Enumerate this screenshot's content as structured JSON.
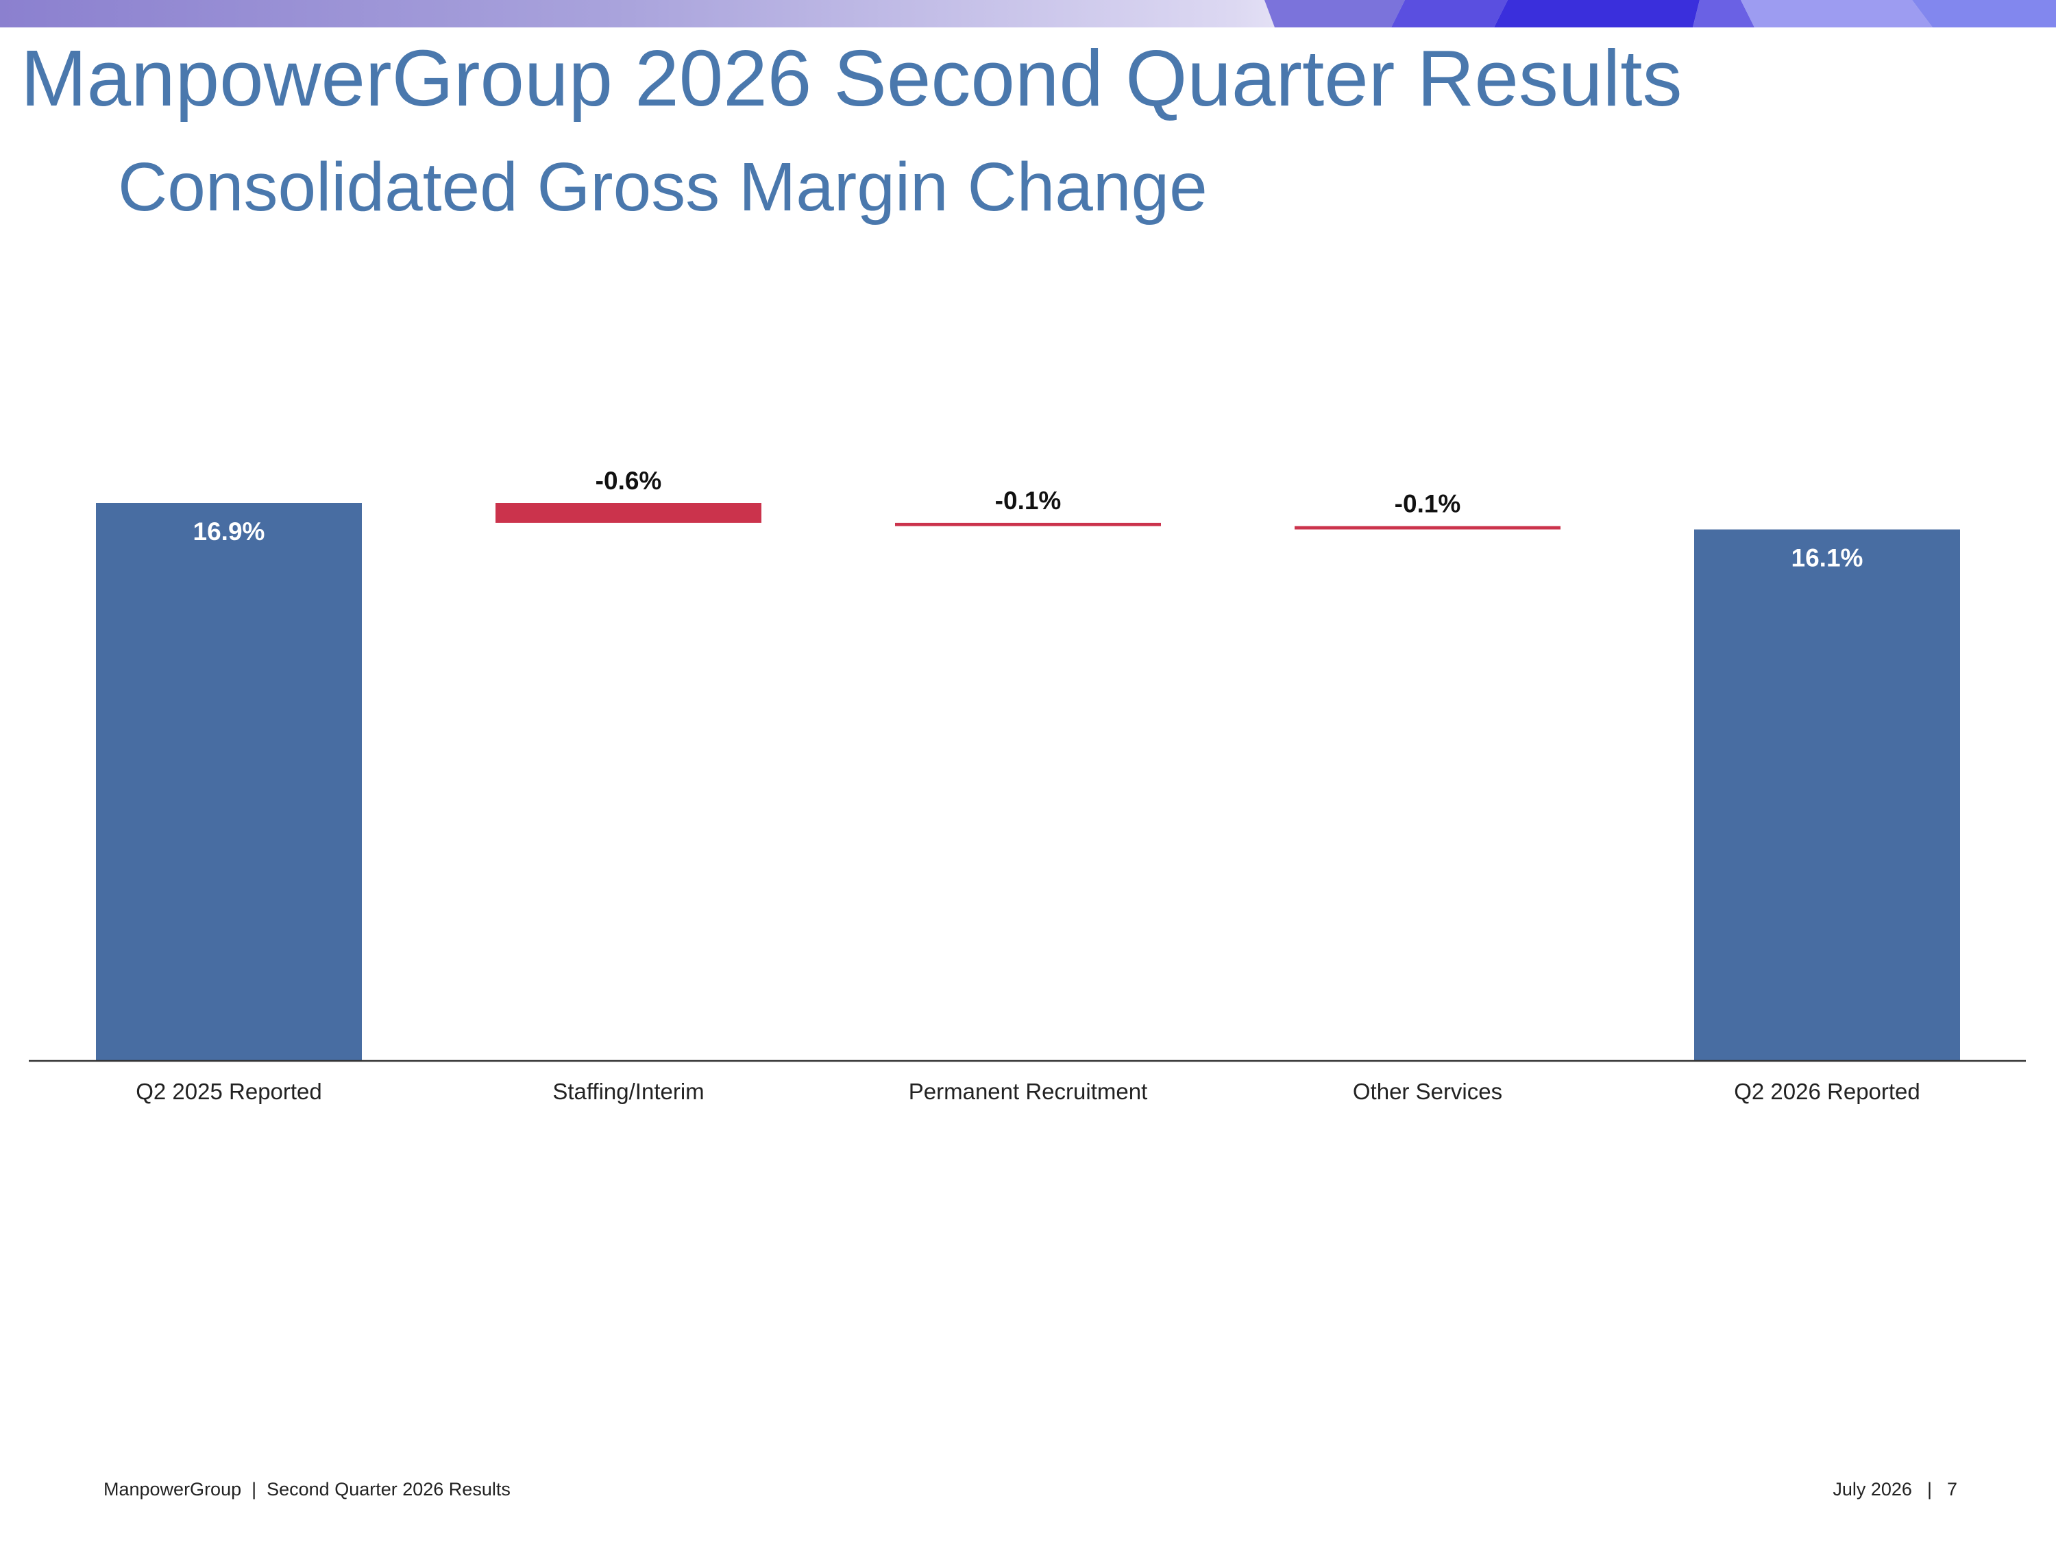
{
  "slide": {
    "title": "ManpowerGroup 2026 Second Quarter Results",
    "subtitle": "Consolidated Gross Margin Change"
  },
  "footer": {
    "left": "ManpowerGroup  |  Second Quarter 2026 Results",
    "date": "July 2026",
    "separator": "|",
    "page_number": "7"
  },
  "colors": {
    "title": "#4a78ad",
    "total_bar": "#486da2",
    "decrease_bar": "#cb334c",
    "banner_start": "#8b7fd0",
    "banner_accent": "#3a2fdc"
  },
  "chart_data": {
    "type": "bar",
    "subtype": "waterfall",
    "categories": [
      "Q2 2025 Reported",
      "Staffing/Interim",
      "Permanent Recruitment",
      "Other Services",
      "Q2 2026 Reported"
    ],
    "values": [
      16.9,
      -0.6,
      -0.1,
      -0.1,
      16.1
    ],
    "bar_kinds": [
      "total",
      "delta",
      "delta",
      "delta",
      "total"
    ],
    "data_labels": [
      "16.9%",
      "-0.6%",
      "-0.1%",
      "-0.1%",
      "16.1%"
    ],
    "unit": "%",
    "grid": false,
    "legend": "none"
  }
}
